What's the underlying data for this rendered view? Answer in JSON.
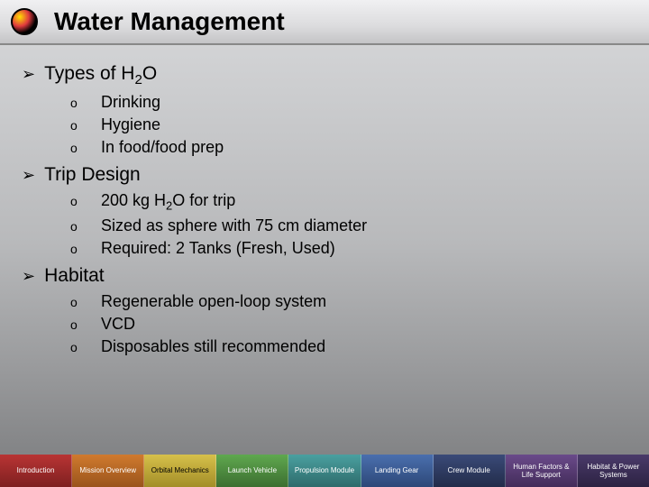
{
  "title": "Water Management",
  "sections": [
    {
      "heading_pre": "Types of H",
      "heading_sub": "2",
      "heading_post": "O",
      "items": [
        {
          "text": "Drinking"
        },
        {
          "text": "Hygiene"
        },
        {
          "text": "In food/food prep"
        }
      ]
    },
    {
      "heading_pre": "Trip Design",
      "heading_sub": "",
      "heading_post": "",
      "items": [
        {
          "pre": "200 kg H",
          "sub": "2",
          "post": "O for trip"
        },
        {
          "text": "Sized as sphere with 75 cm diameter"
        },
        {
          "text": "Required: 2 Tanks (Fresh, Used)"
        }
      ]
    },
    {
      "heading_pre": "Habitat",
      "heading_sub": "",
      "heading_post": "",
      "items": [
        {
          "text": "Regenerable open-loop system"
        },
        {
          "text": "VCD"
        },
        {
          "text": "Disposables still recommended"
        }
      ]
    }
  ],
  "nav": [
    {
      "label": "Introduction",
      "cls": "nav-red"
    },
    {
      "label": "Mission Overview",
      "cls": "nav-orange"
    },
    {
      "label": "Orbital Mechanics",
      "cls": "nav-yellow"
    },
    {
      "label": "Launch Vehicle",
      "cls": "nav-green"
    },
    {
      "label": "Propulsion Module",
      "cls": "nav-teal"
    },
    {
      "label": "Landing Gear",
      "cls": "nav-blue"
    },
    {
      "label": "Crew Module",
      "cls": "nav-navy"
    },
    {
      "label": "Human Factors & Life Support",
      "cls": "nav-purple"
    },
    {
      "label": "Habitat & Power Systems",
      "cls": "nav-dkpurp"
    }
  ],
  "bullets": {
    "l1": "➢",
    "l2": "o"
  }
}
